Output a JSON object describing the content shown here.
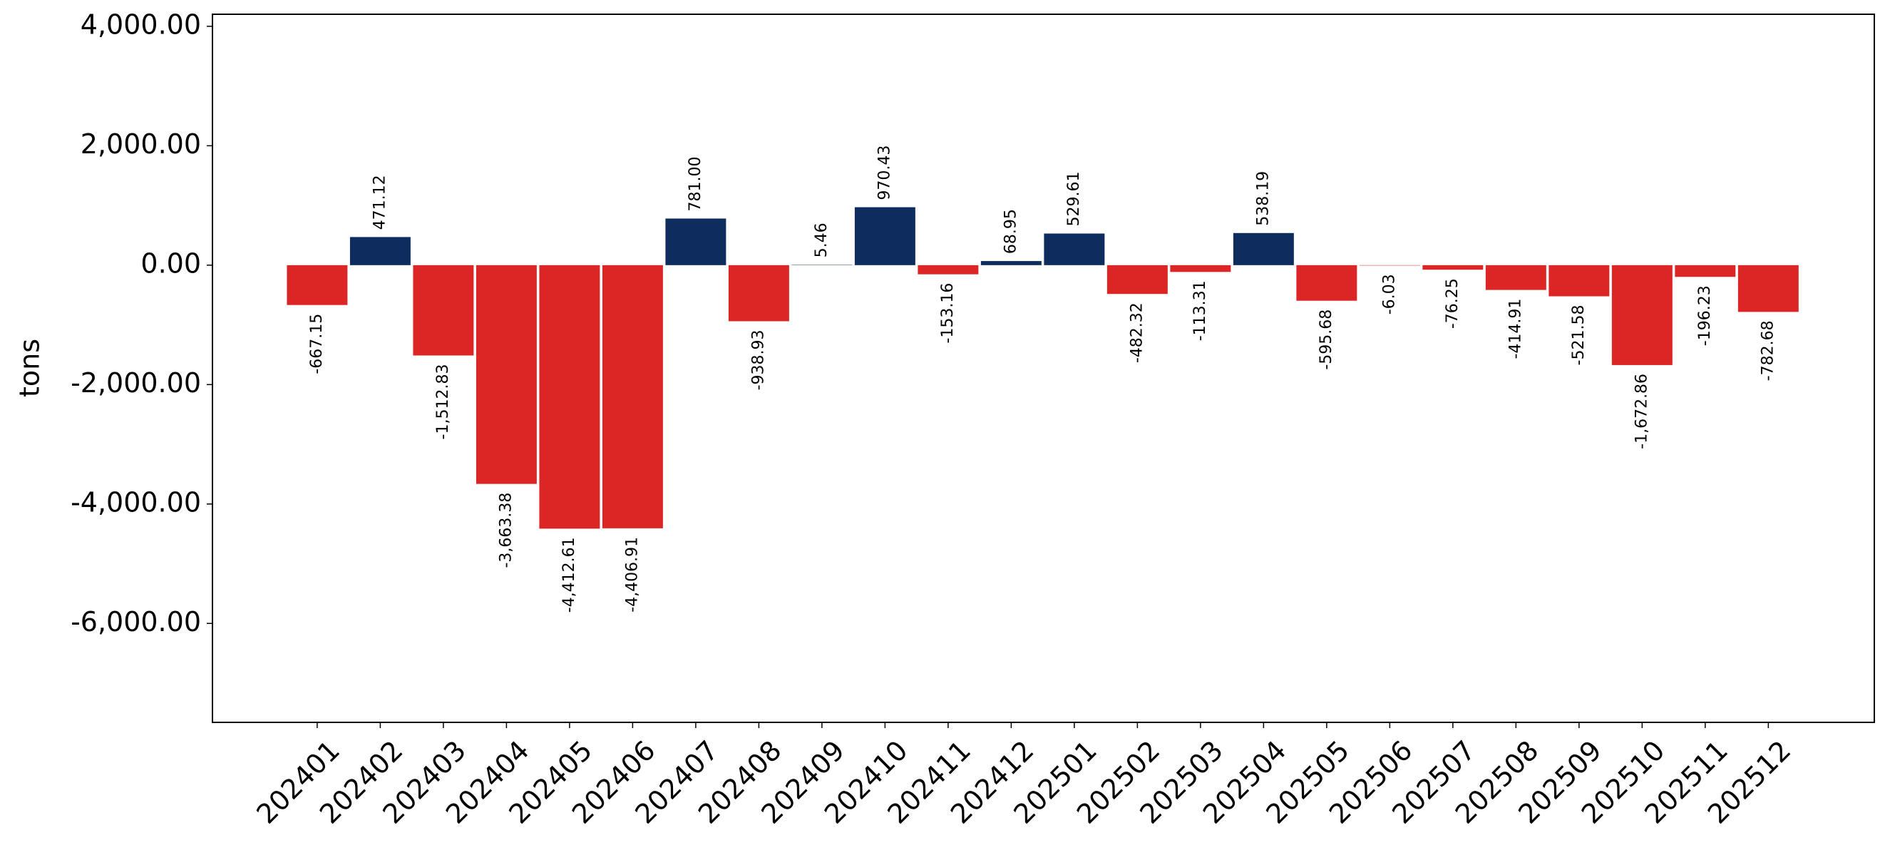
{
  "chart_data": {
    "type": "bar",
    "y_label": "tons",
    "categories": [
      "202401",
      "202402",
      "202403",
      "202404",
      "202405",
      "202406",
      "202407",
      "202408",
      "202409",
      "202410",
      "202411",
      "202412",
      "202501",
      "202502",
      "202503",
      "202504",
      "202505",
      "202506",
      "202507",
      "202508",
      "202509",
      "202510",
      "202511",
      "202512"
    ],
    "values": [
      -667.15,
      471.12,
      -1512.83,
      -3663.38,
      -4412.61,
      -4406.91,
      781.0,
      -938.93,
      5.46,
      970.43,
      -153.16,
      68.95,
      529.61,
      -482.32,
      -113.31,
      538.19,
      -595.68,
      -6.03,
      -76.25,
      -414.91,
      -521.58,
      -1672.86,
      -196.23,
      -782.68
    ],
    "value_labels": [
      "-667.15",
      "471.12",
      "-1,512.83",
      "-3,663.38",
      "-4,412.61",
      "-4,406.91",
      "781.00",
      "-938.93",
      "5.46",
      "970.43",
      "-153.16",
      "68.95",
      "529.61",
      "-482.32",
      "-113.31",
      "538.19",
      "-595.68",
      "-6.03",
      "-76.25",
      "-414.91",
      "-521.58",
      "-1,672.86",
      "-196.23",
      "-782.68"
    ],
    "positive_color": "#0e2d5e",
    "negative_color": "#dc2626",
    "ylim": [
      -7657,
      4202
    ],
    "yticks": [
      {
        "value": -6000,
        "label": "-6,000.00"
      },
      {
        "value": -4000,
        "label": "-4,000.00"
      },
      {
        "value": -2000,
        "label": "-2,000.00"
      },
      {
        "value": 0,
        "label": "0.00"
      },
      {
        "value": 2000,
        "label": "2,000.00"
      },
      {
        "value": 4000,
        "label": "4,000.00"
      }
    ],
    "grid": false
  }
}
